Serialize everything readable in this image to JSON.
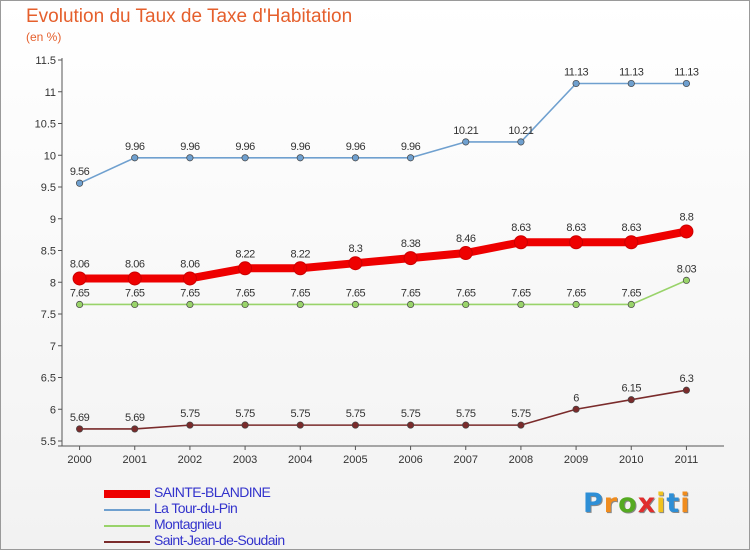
{
  "header": {
    "title": "Evolution du Taux de Taxe d'Habitation",
    "subtitle": "(en %)"
  },
  "logo": {
    "text": "Proxiti",
    "letter_colors": [
      "#2e8fd6",
      "#f08c1e",
      "#55aa22",
      "#e02e2e",
      "#f0c21e",
      "#2e8fd6",
      "#f08c1e"
    ]
  },
  "chart_data": {
    "type": "line",
    "title": "Evolution du Taux de Taxe d'Habitation",
    "subtitle": "(en %)",
    "x": [
      "2000",
      "2001",
      "2002",
      "2003",
      "2004",
      "2005",
      "2006",
      "2007",
      "2008",
      "2009",
      "2010",
      "2011"
    ],
    "ylim": [
      5.5,
      11.5
    ],
    "yticks": [
      "5.5",
      "6",
      "6.5",
      "7",
      "7.5",
      "8",
      "8.5",
      "9",
      "9.5",
      "10",
      "10.5",
      "11",
      "11.5"
    ],
    "grid": false,
    "legend_position": "bottom-left",
    "series": [
      {
        "name": "SAINTE-BLANDINE",
        "color": "#ee0000",
        "values": [
          8.06,
          8.06,
          8.06,
          8.22,
          8.22,
          8.3,
          8.38,
          8.46,
          8.63,
          8.63,
          8.63,
          8.8
        ],
        "labels": [
          "8.06",
          "8.06",
          "8.06",
          "8.22",
          "8.22",
          "8.3",
          "8.38",
          "8.46",
          "8.63",
          "8.63",
          "8.63",
          "8.8"
        ]
      },
      {
        "name": "La Tour-du-Pin",
        "color": "#6fa0cf",
        "values": [
          9.56,
          9.96,
          9.96,
          9.96,
          9.96,
          9.96,
          9.96,
          10.21,
          10.21,
          11.13,
          11.13,
          11.13
        ],
        "labels": [
          "9.56",
          "9.96",
          "9.96",
          "9.96",
          "9.96",
          "9.96",
          "9.96",
          "10.21",
          "10.21",
          "11.13",
          "11.13",
          "11.13"
        ]
      },
      {
        "name": "Montagnieu",
        "color": "#99d36a",
        "values": [
          7.65,
          7.65,
          7.65,
          7.65,
          7.65,
          7.65,
          7.65,
          7.65,
          7.65,
          7.65,
          7.65,
          8.03
        ],
        "labels": [
          "7.65",
          "7.65",
          "7.65",
          "7.65",
          "7.65",
          "7.65",
          "7.65",
          "7.65",
          "7.65",
          "7.65",
          "7.65",
          "8.03"
        ]
      },
      {
        "name": "Saint-Jean-de-Soudain",
        "color": "#7a2b2b",
        "values": [
          5.69,
          5.69,
          5.75,
          5.75,
          5.75,
          5.75,
          5.75,
          5.75,
          5.75,
          6.0,
          6.15,
          6.3
        ],
        "labels": [
          "5.69",
          "5.69",
          "5.75",
          "5.75",
          "5.75",
          "5.75",
          "5.75",
          "5.75",
          "5.75",
          "6",
          "6.15",
          "6.3"
        ]
      }
    ]
  }
}
